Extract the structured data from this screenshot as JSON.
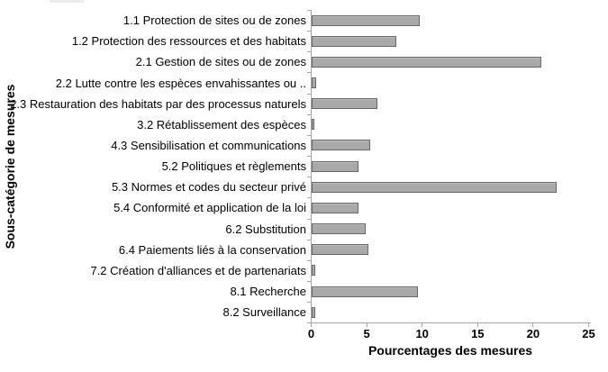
{
  "chart_data": {
    "type": "bar",
    "orientation": "horizontal",
    "title": "",
    "xlabel": "Pourcentages des mesures",
    "ylabel": "Sous-catégorie de mesures",
    "xlim": [
      0,
      25
    ],
    "xticks": [
      0,
      5,
      10,
      15,
      20,
      25
    ],
    "grid": false,
    "legend": false,
    "categories": [
      "1.1 Protection de sites ou de zones",
      "1.2 Protection des ressources et des habitats",
      "2.1 Gestion de sites ou de zones",
      "2.2 Lutte contre les espèces envahissantes ou ..",
      "2.3 Restauration des habitats par des processus naturels",
      "3.2 Rétablissement des espèces",
      "4.3 Sensibilisation et communications",
      "5.2 Politiques et règlements",
      "5.3 Normes et codes du secteur privé",
      "5.4 Conformité et application de la loi",
      "6.2 Substitution",
      "6.4 Paiements liés à la conservation",
      "7.2 Création d'alliances et de partenariats",
      "8.1 Recherche",
      "8.2 Surveillance"
    ],
    "values": [
      9.7,
      7.6,
      20.7,
      0.4,
      5.9,
      0.2,
      5.3,
      4.2,
      22.1,
      4.2,
      4.9,
      5.1,
      0.3,
      9.6,
      0.3
    ],
    "colors": {
      "bar_fill": "#a9a9a9",
      "bar_border": "#686868",
      "axis": "#a6a6a6",
      "text": "#000000"
    }
  }
}
